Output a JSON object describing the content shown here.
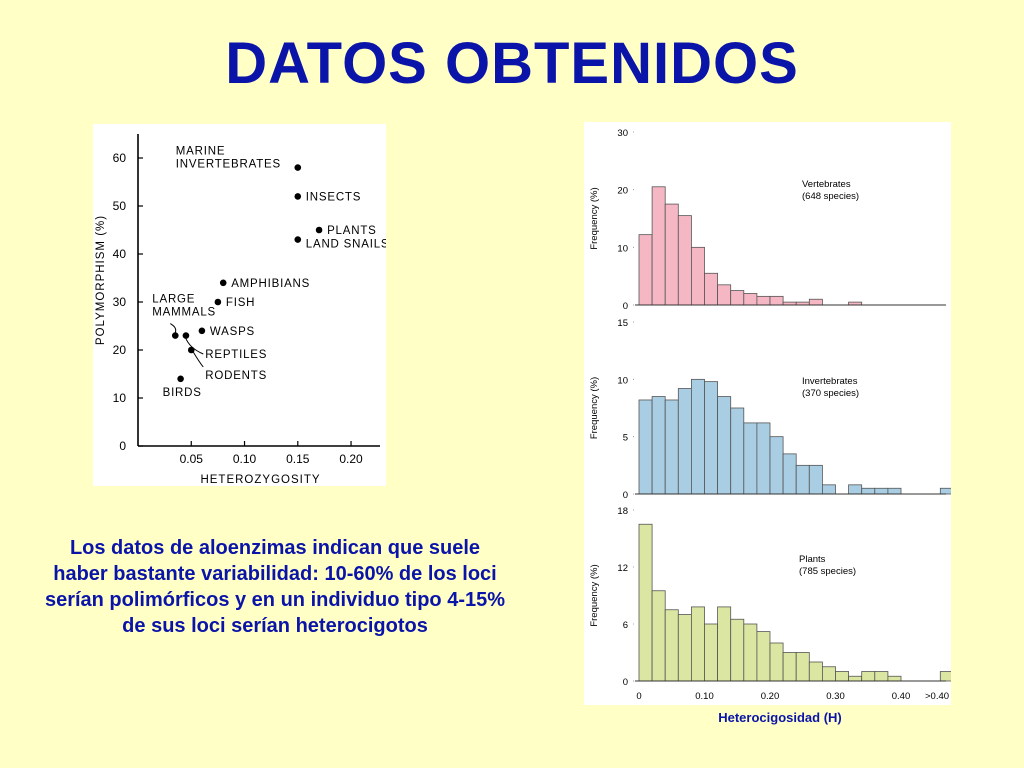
{
  "title": "DATOS OBTENIDOS",
  "caption": "Los datos de aloenzimas indican que suele haber bastante variabilidad: 10-60% de los loci serían polimórficos y en un individuo tipo 4-15% de sus loci serían heterocigotos",
  "chart_data": [
    {
      "type": "scatter",
      "xlabel": "HETEROZYGOSITY",
      "ylabel": "POLYMORPHISM (%)",
      "xlim": [
        0,
        0.23
      ],
      "ylim": [
        0,
        65
      ],
      "xticks": [
        "0.05",
        "0.10",
        "0.15",
        "0.20"
      ],
      "yticks": [
        "0",
        "10",
        "20",
        "30",
        "40",
        "50",
        "60"
      ],
      "points": [
        {
          "x": 0.15,
          "y": 58,
          "label": [
            "MARINE",
            "INVERTEBRATES"
          ]
        },
        {
          "x": 0.15,
          "y": 52,
          "label": [
            "INSECTS"
          ]
        },
        {
          "x": 0.17,
          "y": 45,
          "label": [
            "PLANTS"
          ]
        },
        {
          "x": 0.15,
          "y": 43,
          "label": [
            "LAND SNAILS"
          ]
        },
        {
          "x": 0.08,
          "y": 34,
          "label": [
            "AMPHIBIANS"
          ]
        },
        {
          "x": 0.075,
          "y": 30,
          "label": [
            "FISH"
          ]
        },
        {
          "x": 0.035,
          "y": 23,
          "label": [
            "LARGE",
            "MAMMALS"
          ]
        },
        {
          "x": 0.045,
          "y": 23,
          "label": []
        },
        {
          "x": 0.06,
          "y": 24,
          "label": [
            "WASPS"
          ]
        },
        {
          "x": 0.05,
          "y": 20,
          "label": [
            "REPTILES",
            "RODENTS"
          ]
        },
        {
          "x": 0.04,
          "y": 14,
          "label": [
            "BIRDS"
          ]
        }
      ]
    },
    {
      "type": "bar",
      "name": "Vertebrates",
      "subtitle": "(648 species)",
      "color": "#F5B7C3",
      "ylabel": "Frequency (%)",
      "ylim": [
        0,
        30
      ],
      "yticks": [
        "0",
        "10",
        "20",
        "30"
      ],
      "bin_width": 0.02,
      "values": [
        12.2,
        20.5,
        17.5,
        15.5,
        10,
        5.5,
        3.5,
        2.5,
        2,
        1.5,
        1.5,
        0.5,
        0.5,
        1,
        0,
        0,
        0.5
      ]
    },
    {
      "type": "bar",
      "name": "Invertebrates",
      "subtitle": "(370 species)",
      "color": "#A9CDE2",
      "ylabel": "Frequency (%)",
      "ylim": [
        0,
        15
      ],
      "yticks": [
        "0",
        "5",
        "10",
        "15"
      ],
      "bin_width": 0.02,
      "values": [
        8.2,
        8.5,
        8.2,
        9.2,
        10,
        9.8,
        8.5,
        7.5,
        6.2,
        6.2,
        5,
        3.5,
        2.5,
        2.5,
        0.8,
        0,
        0.8,
        0.5,
        0.5,
        0.5,
        0,
        0,
        0,
        0.5
      ]
    },
    {
      "type": "bar",
      "name": "Plants",
      "subtitle": "(785 species)",
      "color": "#DAE6A1",
      "ylabel": "Frequency (%)",
      "ylim": [
        0,
        18
      ],
      "yticks": [
        "0",
        "6",
        "12",
        "18"
      ],
      "xticks": [
        "0",
        "0.10",
        "0.20",
        "0.30",
        "0.40",
        ">0.40"
      ],
      "bin_width": 0.02,
      "values": [
        16.5,
        9.5,
        7.5,
        7.0,
        7.8,
        6.0,
        7.8,
        6.5,
        6.0,
        5.2,
        4.0,
        3.0,
        3.0,
        2.0,
        1.5,
        1.0,
        0.5,
        1.0,
        1.0,
        0.5,
        0,
        0,
        0,
        1
      ]
    }
  ],
  "hist_xlabel": "Heterocigosidad (H)"
}
